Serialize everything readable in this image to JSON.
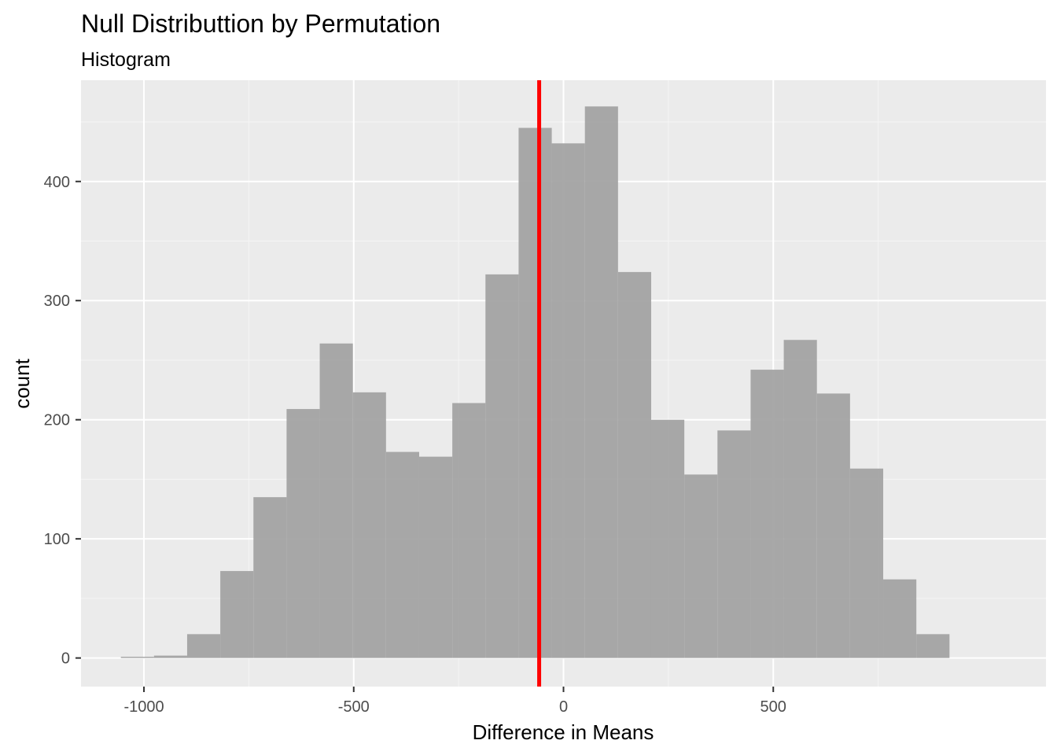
{
  "chart_data": {
    "type": "bar",
    "title": "Null Distributtion by Permutation",
    "subtitle": "Histogram",
    "xlabel": "Difference in Means",
    "ylabel": "count",
    "xlim": [
      -1150,
      1150
    ],
    "ylim": [
      -24,
      485
    ],
    "x_ticks": [
      -1000,
      -500,
      0,
      500
    ],
    "x_tick_labels": [
      "-1000",
      "-500",
      "0",
      "500"
    ],
    "y_ticks": [
      0,
      100,
      200,
      300,
      400
    ],
    "y_tick_labels": [
      "0",
      "100",
      "200",
      "300",
      "400"
    ],
    "grid": true,
    "bins": {
      "start": -1055,
      "width": 79,
      "counts": [
        1,
        2,
        20,
        73,
        135,
        209,
        264,
        223,
        173,
        169,
        214,
        322,
        445,
        432,
        463,
        324,
        200,
        154,
        191,
        242,
        267,
        222,
        159,
        66,
        20
      ]
    },
    "reference_line": {
      "x": -58,
      "color": "#ff0000"
    },
    "colors": {
      "bar_fill": "#a3a3a3",
      "panel_background": "#ebebeb",
      "grid_major": "#ffffff",
      "grid_minor": "#f5f5f5",
      "reference_line": "#ff0000"
    }
  }
}
